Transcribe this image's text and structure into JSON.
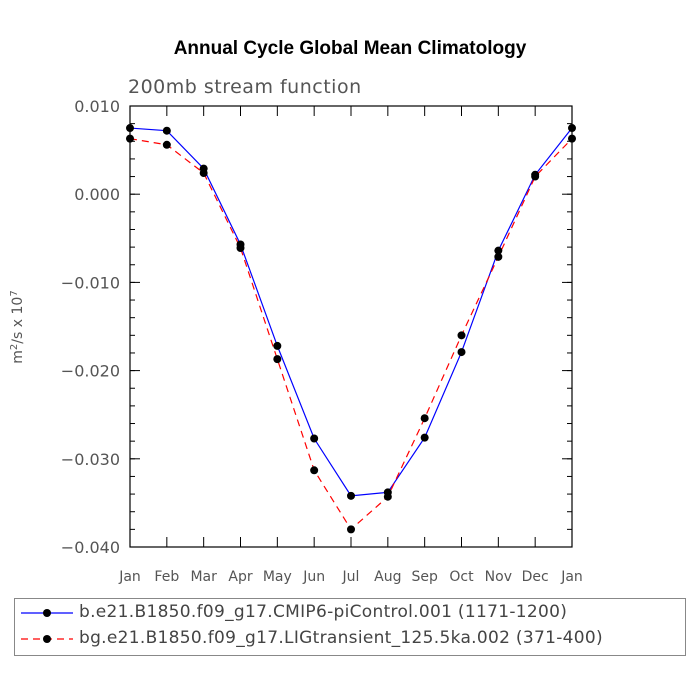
{
  "chart_data": {
    "type": "line",
    "title": "Annual Cycle Global Mean Climatology",
    "subtitle": "200mb stream function",
    "ylabel": "m²/s x 10⁷",
    "ylim": [
      -0.04,
      0.01
    ],
    "yticks": [
      "0.010",
      "0.000",
      "-0.010",
      "-0.020",
      "-0.030",
      "-0.040"
    ],
    "ytick_values": [
      0.01,
      0.0,
      -0.01,
      -0.02,
      -0.03,
      -0.04
    ],
    "categories": [
      "Jan",
      "Feb",
      "Mar",
      "Apr",
      "May",
      "Jun",
      "Jul",
      "Aug",
      "Sep",
      "Oct",
      "Nov",
      "Dec",
      "Jan"
    ],
    "series": [
      {
        "name": "b.e21.B1850.f09_g17.CMIP6-piControl.001 (1171-1200)",
        "color": "#0000ff",
        "dash": "solid",
        "values": [
          0.0075,
          0.0072,
          0.0029,
          -0.0057,
          -0.0172,
          -0.0277,
          -0.0342,
          -0.0338,
          -0.0276,
          -0.0179,
          -0.0064,
          0.0022,
          0.0075
        ]
      },
      {
        "name": "bg.e21.B1850.f09_g17.LIGtransient_125.5ka.002 (371-400)",
        "color": "#ff0000",
        "dash": "dashed",
        "values": [
          0.0063,
          0.0056,
          0.0024,
          -0.0061,
          -0.0187,
          -0.0313,
          -0.038,
          -0.0343,
          -0.0254,
          -0.016,
          -0.0071,
          0.002,
          0.0063
        ]
      }
    ]
  }
}
